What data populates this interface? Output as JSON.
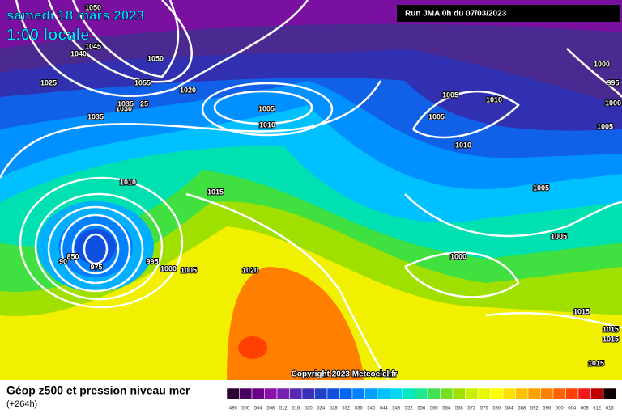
{
  "header": {
    "date": "samedi 18 mars 2023",
    "time": "1:00 locale",
    "run": "Run JMA 0h du 07/03/2023"
  },
  "map": {
    "isobar_labels": [
      1050,
      1045,
      1040,
      1025,
      1050,
      1055,
      1035,
      1030,
      1020,
      1005,
      1010,
      1005,
      1010,
      1005,
      1010,
      1000,
      995,
      1000,
      1005,
      1010,
      1015,
      1005,
      1005,
      1000,
      850,
      975,
      995,
      1000,
      1005,
      1020,
      1015,
      1015,
      1015,
      1015,
      90,
      1035,
      25
    ],
    "copyright": "Copyright 2023 Meteociel.fr"
  },
  "footer": {
    "title": "Géop z500 et pression niveau mer",
    "lead": "(+264h)"
  },
  "legend": {
    "values": [
      496,
      500,
      504,
      508,
      512,
      516,
      520,
      524,
      528,
      532,
      536,
      540,
      544,
      548,
      552,
      556,
      560,
      564,
      568,
      572,
      576,
      580,
      584,
      588,
      592,
      596,
      600,
      604,
      608,
      612,
      616
    ],
    "colors": [
      "#2a0030",
      "#4a0060",
      "#6a0088",
      "#8a10a8",
      "#7a20b0",
      "#5a28b0",
      "#3a30b8",
      "#2040c8",
      "#1050e0",
      "#0064f0",
      "#0080ff",
      "#00a0ff",
      "#00c0ff",
      "#00d8f0",
      "#00e8c0",
      "#20e890",
      "#40e050",
      "#70e020",
      "#a0e000",
      "#c8f000",
      "#e8f800",
      "#ffff00",
      "#ffe000",
      "#ffc000",
      "#ffa000",
      "#ff8000",
      "#ff6000",
      "#ff4000",
      "#f01818",
      "#c00000",
      "#100000"
    ]
  }
}
